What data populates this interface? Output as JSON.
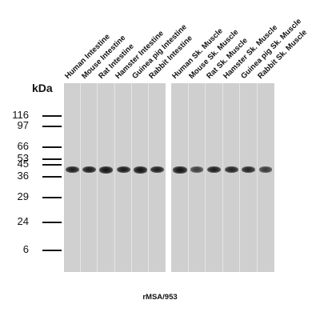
{
  "lanes_left": [
    {
      "label": "Human Intestine",
      "intensity": 0.9
    },
    {
      "label": "Mouse Intestine",
      "intensity": 0.95
    },
    {
      "label": "Rat Intestine",
      "intensity": 1.0
    },
    {
      "label": "Hamster Intestine",
      "intensity": 0.95
    },
    {
      "label": "Guinea pig Intestine",
      "intensity": 1.0
    },
    {
      "label": "Rabbit Intestine",
      "intensity": 0.9
    }
  ],
  "lanes_right": [
    {
      "label": "Human Sk. Muscle",
      "intensity": 1.0
    },
    {
      "label": "Mouse Sk. Muscle",
      "intensity": 0.6
    },
    {
      "label": "Rat Sk. Muscle",
      "intensity": 0.9
    },
    {
      "label": "Hamster Sk. Muscle",
      "intensity": 0.85
    },
    {
      "label": "Guinea pig Sk. Muscle",
      "intensity": 0.85
    },
    {
      "label": "Rabbit Sk. Muscle",
      "intensity": 0.65
    }
  ],
  "kda_label": "kDa",
  "markers": [
    "116",
    "97",
    "66",
    "53",
    "45",
    "36",
    "29",
    "24",
    "6"
  ],
  "caption": "rMSA/953"
}
